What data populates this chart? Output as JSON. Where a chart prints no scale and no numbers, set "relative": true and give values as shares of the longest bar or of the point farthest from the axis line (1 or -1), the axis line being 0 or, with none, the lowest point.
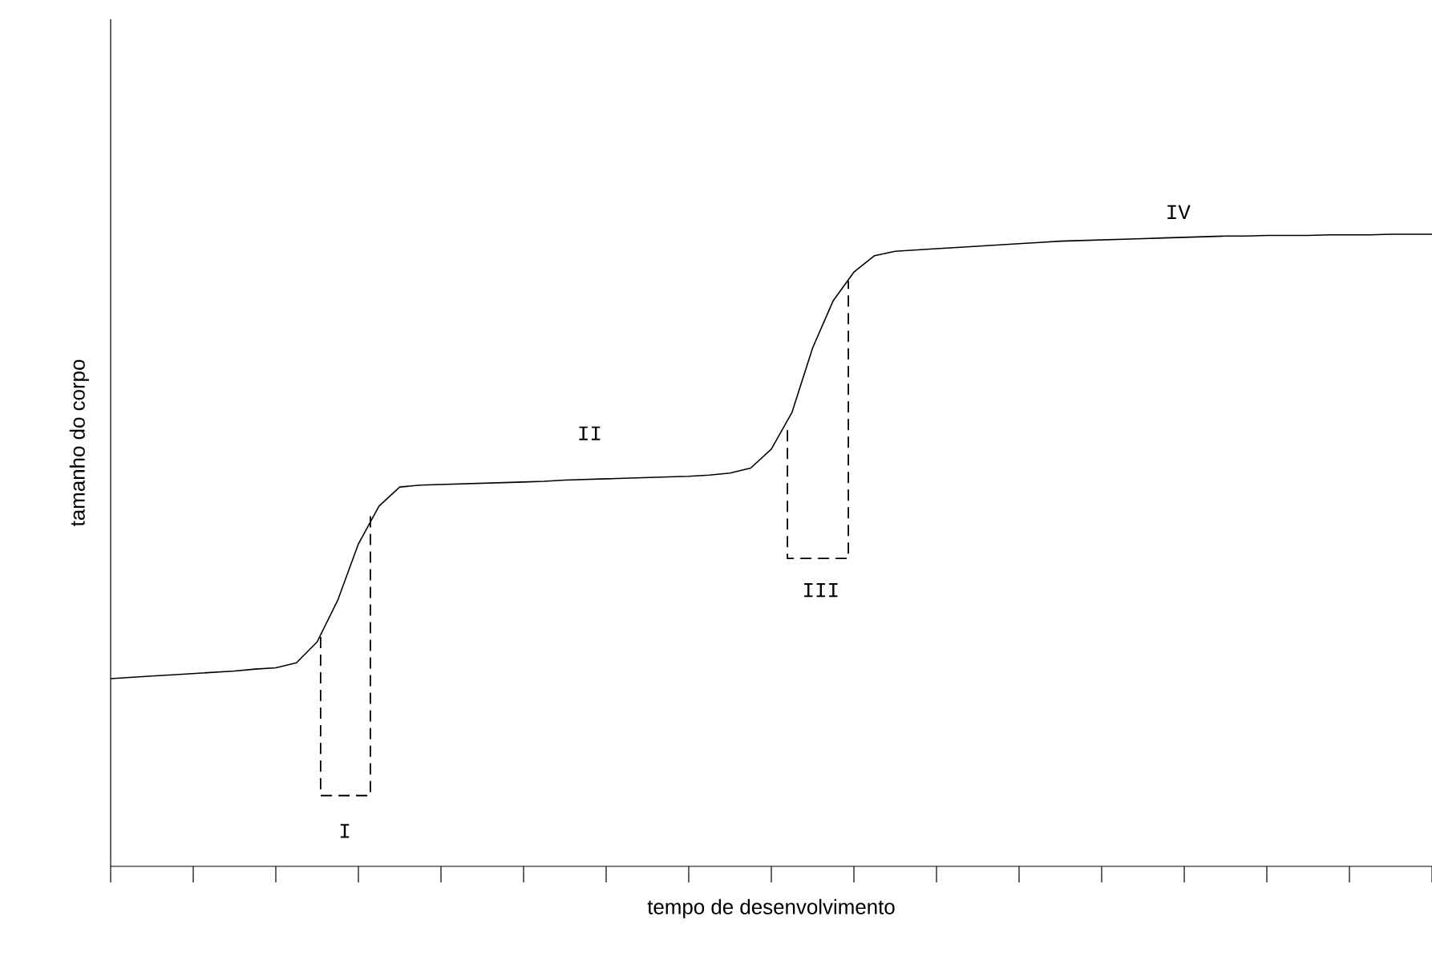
{
  "chart_data": {
    "type": "line",
    "relative": true,
    "xlabel": "tempo de desenvolvimento",
    "ylabel": "tamanho do corpo",
    "marker": "none",
    "categories": [
      null,
      null,
      null,
      null,
      null,
      null,
      null,
      null,
      null,
      null,
      null,
      null,
      null,
      null,
      null,
      null,
      null,
      null,
      null,
      null,
      null,
      null,
      null,
      null,
      null,
      null,
      null,
      null,
      null,
      null,
      null,
      null,
      null,
      null,
      null,
      null,
      null,
      null,
      null,
      null,
      null,
      null,
      null,
      null,
      null,
      null,
      null,
      null,
      null,
      null,
      null,
      null,
      null,
      null,
      null,
      null,
      null,
      null,
      null,
      null,
      null,
      null,
      null,
      null,
      null
    ],
    "series": [
      {
        "color": "#000000",
        "values": [
          0.297,
          0.299,
          0.301,
          0.303,
          0.305,
          0.307,
          0.309,
          0.312,
          0.314,
          0.322,
          0.355,
          0.421,
          0.51,
          0.57,
          0.6,
          0.603,
          0.604,
          0.605,
          0.606,
          0.607,
          0.608,
          0.609,
          0.611,
          0.612,
          0.613,
          0.614,
          0.615,
          0.616,
          0.617,
          0.619,
          0.622,
          0.63,
          0.66,
          0.718,
          0.82,
          0.895,
          0.94,
          0.966,
          0.973,
          0.975,
          0.977,
          0.979,
          0.981,
          0.983,
          0.985,
          0.987,
          0.989,
          0.99,
          0.991,
          0.992,
          0.993,
          0.994,
          0.995,
          0.996,
          0.997,
          0.997,
          0.998,
          0.998,
          0.998,
          0.999,
          0.999,
          0.999,
          1.0,
          1.0,
          1.0
        ]
      }
    ],
    "annotations": [
      "I",
      "II",
      "III",
      "IV"
    ]
  }
}
